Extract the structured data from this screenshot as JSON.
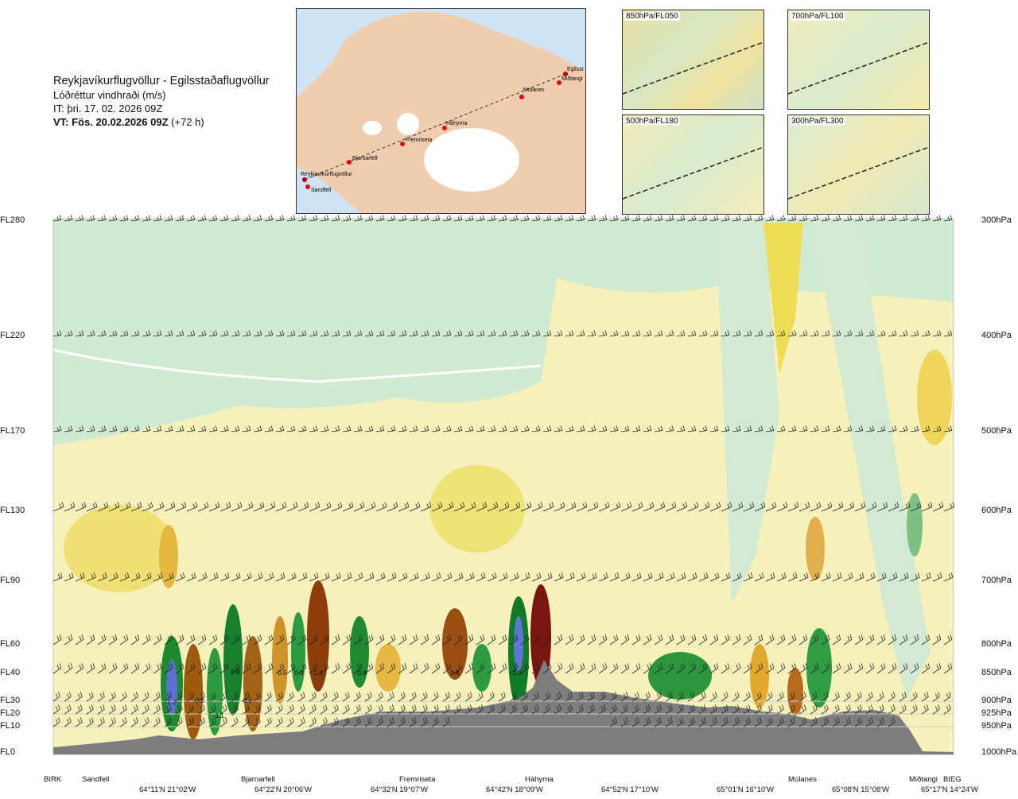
{
  "header": {
    "route": "Reykjavíkurflugvöllur - Egilsstaðaflugvöllur",
    "variable": "Lóðréttur vindhraði (m/s)",
    "issue_time": "IT: þri. 17. 02. 2026 09Z",
    "valid_time_bold": "VT: Fös. 20.02.2026 09Z",
    "valid_time_offset": "(+72 h)"
  },
  "map": {
    "points": [
      "Reykjavíkurflugvöllur",
      "Sandfell",
      "Bjarnarfell",
      "Fremriseta",
      "Háhyrna",
      "Múlanes",
      "Miðtangi",
      "Egilsst"
    ]
  },
  "panels": [
    {
      "label": "850hPa/FL050"
    },
    {
      "label": "700hPa/FL100"
    },
    {
      "label": "500hPa/FL180"
    },
    {
      "label": "300hPa/FL300"
    }
  ],
  "chart_data": {
    "type": "heatmap",
    "title": "Lóðréttur vindhraði (m/s)",
    "left_axis_levels": [
      {
        "label": "FL280",
        "hpa": 300
      },
      {
        "label": "FL220",
        "hpa": 400
      },
      {
        "label": "FL170",
        "hpa": 500
      },
      {
        "label": "FL130",
        "hpa": 600
      },
      {
        "label": "FL90",
        "hpa": 700
      },
      {
        "label": "FL60",
        "hpa": 800
      },
      {
        "label": "FL40",
        "hpa": 850
      },
      {
        "label": "FL30",
        "hpa": 900
      },
      {
        "label": "FL20",
        "hpa": 925
      },
      {
        "label": "FL10",
        "hpa": 950
      },
      {
        "label": "FL0",
        "hpa": 1000
      }
    ],
    "right_axis_labels": [
      "300hPa",
      "400hPa",
      "500hPa",
      "600hPa",
      "700hPa",
      "800hPa",
      "850hPa",
      "900hPa",
      "925hPa",
      "950hPa",
      "1000hPa"
    ],
    "x_points": [
      "BIRK",
      "Sandfell",
      "Bjarnarfell",
      "Fremriseta",
      "Háhyrna",
      "Múlanes",
      "Miðtangi",
      "BIEG"
    ],
    "x_coords": [
      "64°11'N 21°02'W",
      "64°22'N 20°06'W",
      "64°32'N 19°07'W",
      "64°42'N 18°09'W",
      "64°52'N 17°10'W",
      "65°01'N 16°10'W",
      "65°08'N 15°08'W",
      "65°17'N 14°24'W"
    ],
    "contour_labels": [
      "1.2",
      "-0.8",
      "-1.1",
      "0.8",
      "-0.6",
      "0.5",
      "0.9",
      "1.0",
      "0.8",
      "0.8",
      "1.0"
    ]
  }
}
